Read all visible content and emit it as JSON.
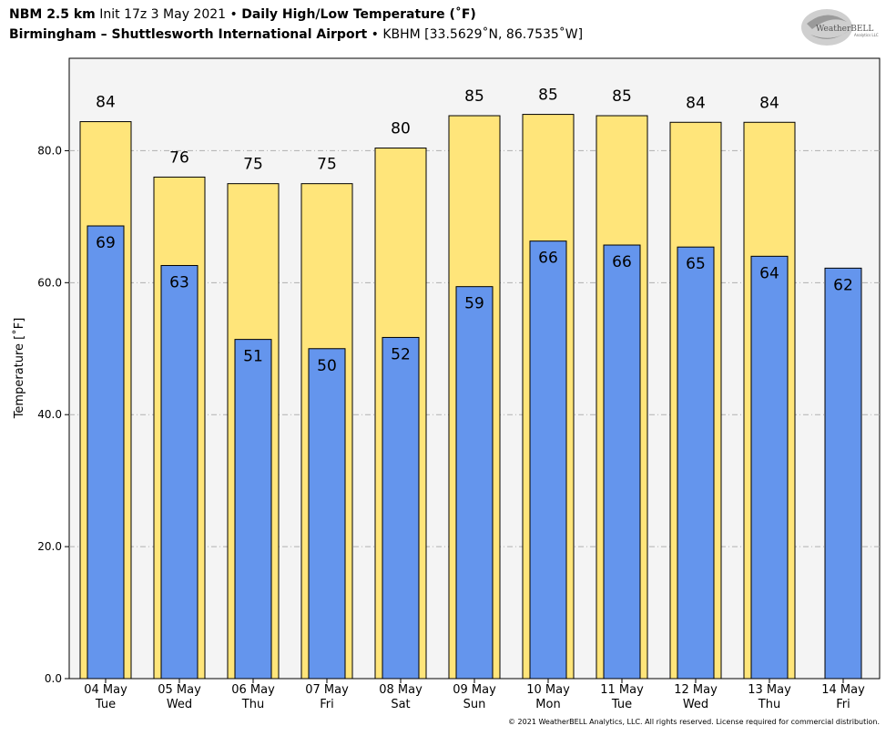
{
  "header": {
    "line1_model": "NBM 2.5 km",
    "line1_init": "Init 17z 3 May 2021",
    "line1_bullet": "•",
    "line1_title": "Daily High/Low Temperature (˚F)",
    "line2_station": "Birmingham – Shuttlesworth International Airport",
    "line2_bullet": "•",
    "line2_id": "KBHM [33.5629˚N, 86.7535˚W]"
  },
  "logo": {
    "text": "WeatherBELL",
    "subtext": "Analytics LLC",
    "icon": "weatherbell-swirl-logo"
  },
  "copyright": "© 2021 WeatherBELL Analytics, LLC. All rights reserved. License required for commercial distribution.",
  "colors": {
    "high": "#ffe57a",
    "low": "#6495ed",
    "plot_bg": "#f4f4f4"
  },
  "chart_data": {
    "type": "bar",
    "ylabel": "Temperature [˚F]",
    "ylim": [
      0,
      94
    ],
    "yticks": [
      0,
      20,
      40,
      60,
      80
    ],
    "ytick_labels": [
      "0.0",
      "20.0",
      "40.0",
      "60.0",
      "80.0"
    ],
    "grid": "horizontal dash-dot",
    "categories": [
      [
        "04 May",
        "Tue"
      ],
      [
        "05 May",
        "Wed"
      ],
      [
        "06 May",
        "Thu"
      ],
      [
        "07 May",
        "Fri"
      ],
      [
        "08 May",
        "Sat"
      ],
      [
        "09 May",
        "Sun"
      ],
      [
        "10 May",
        "Mon"
      ],
      [
        "11 May",
        "Tue"
      ],
      [
        "12 May",
        "Wed"
      ],
      [
        "13 May",
        "Thu"
      ],
      [
        "14 May",
        "Fri"
      ]
    ],
    "series": [
      {
        "values": [
          84.4,
          76.0,
          75.0,
          75.0,
          80.4,
          85.3,
          85.5,
          85.3,
          84.3,
          84.3,
          null
        ],
        "labels": [
          "84",
          "76",
          "75",
          "75",
          "80",
          "85",
          "85",
          "85",
          "84",
          "84",
          ""
        ]
      },
      {
        "values": [
          68.6,
          62.6,
          51.4,
          50.0,
          51.7,
          59.4,
          66.3,
          65.7,
          65.4,
          64.0,
          62.2
        ],
        "labels": [
          "69",
          "63",
          "51",
          "50",
          "52",
          "59",
          "66",
          "66",
          "65",
          "64",
          "62"
        ]
      }
    ]
  }
}
